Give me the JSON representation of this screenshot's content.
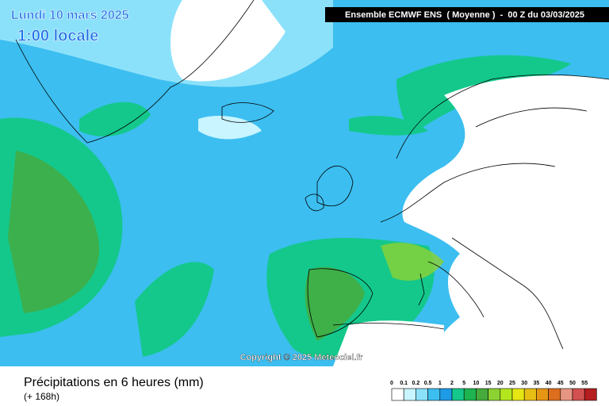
{
  "map": {
    "date": "Lundi 10 mars 2025",
    "time": "1:00 locale",
    "header": "Ensemble ECMWF ENS  ( Moyenne )  -  00 Z du 03/03/2025",
    "copyright": "Copyright © 2025 Meteociel.fr",
    "title": "Précipitations en 6 heures (mm)",
    "subtitle": "(+ 168h)",
    "legend": [
      {
        "label": "0",
        "color": "#ffffff"
      },
      {
        "label": "0.1",
        "color": "#c8f5ff"
      },
      {
        "label": "0.2",
        "color": "#8ce1fa"
      },
      {
        "label": "0.5",
        "color": "#3cbef0"
      },
      {
        "label": "1",
        "color": "#1e9be6"
      },
      {
        "label": "2",
        "color": "#14c88c"
      },
      {
        "label": "5",
        "color": "#1eb450"
      },
      {
        "label": "10",
        "color": "#46aa3c"
      },
      {
        "label": "15",
        "color": "#8cd232"
      },
      {
        "label": "20",
        "color": "#b4e61e"
      },
      {
        "label": "25",
        "color": "#e6e614"
      },
      {
        "label": "30",
        "color": "#e6be14"
      },
      {
        "label": "35",
        "color": "#e69614"
      },
      {
        "label": "40",
        "color": "#dc6e1e"
      },
      {
        "label": "45",
        "color": "#e69682"
      },
      {
        "label": "50",
        "color": "#d25050"
      },
      {
        "label": "55",
        "color": "#b41e1e"
      }
    ]
  }
}
